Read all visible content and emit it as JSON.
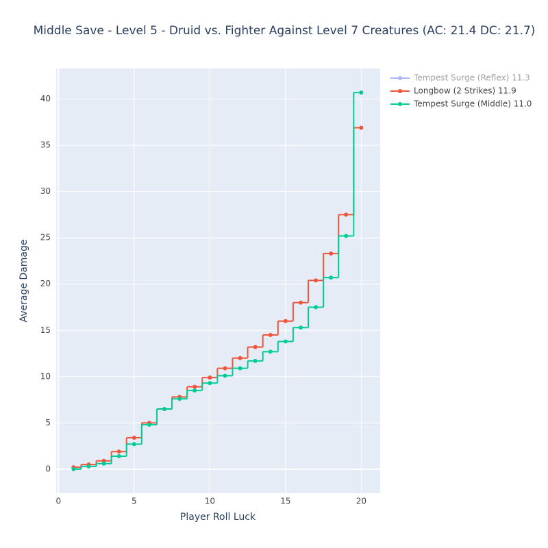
{
  "chart_data": {
    "type": "step-line",
    "title": "Middle Save - Level 5 - Druid vs. Fighter Against Level 7 Creatures (AC: 21.4 DC: 21.7)",
    "x_label": "Player Roll Luck",
    "y_label": "Average Damage",
    "x": [
      1,
      2,
      3,
      4,
      5,
      6,
      7,
      8,
      9,
      10,
      11,
      12,
      13,
      14,
      15,
      16,
      17,
      18,
      19,
      20
    ],
    "series": [
      {
        "name": "Tempest Surge (Reflex) 11.3",
        "color": "#636efa",
        "visible": "legendonly"
      },
      {
        "name": "Longbow (2 Strikes) 11.9",
        "color": "#ef553b",
        "values": [
          0.2,
          0.5,
          0.9,
          1.9,
          3.4,
          5.0,
          6.5,
          7.8,
          8.9,
          9.9,
          10.9,
          12.0,
          13.2,
          14.5,
          16.0,
          18.0,
          20.4,
          23.3,
          27.5,
          36.9
        ]
      },
      {
        "name": "Tempest Surge (Middle) 11.0",
        "color": "#00cc96",
        "values": [
          0.0,
          0.3,
          0.6,
          1.4,
          2.7,
          4.8,
          6.5,
          7.6,
          8.5,
          9.3,
          10.1,
          10.9,
          11.7,
          12.7,
          13.8,
          15.3,
          17.5,
          20.7,
          25.2,
          40.7
        ]
      }
    ],
    "xlim": [
      -0.15,
      21.25
    ],
    "ylim": [
      -2.6,
      43.3
    ],
    "xticks": [
      0,
      5,
      10,
      15,
      20
    ],
    "yticks": [
      0,
      5,
      10,
      15,
      20,
      25,
      30,
      35,
      40
    ],
    "grid": true,
    "legend": "right"
  }
}
